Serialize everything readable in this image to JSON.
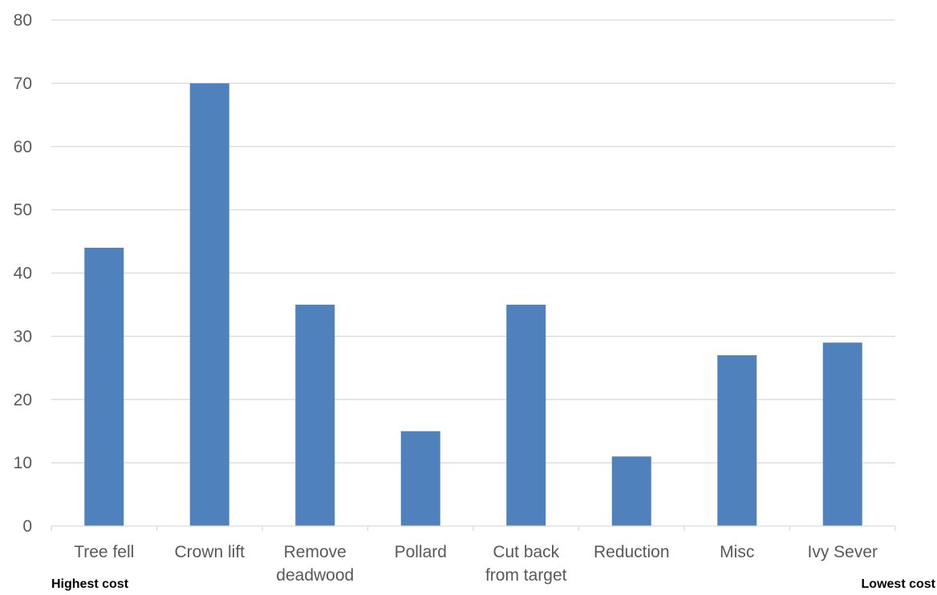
{
  "chart_data": {
    "type": "bar",
    "categories": [
      "Tree fell",
      "Crown lift",
      "Remove deadwood",
      "Pollard",
      "Cut back from target",
      "Reduction",
      "Misc",
      "Ivy Sever"
    ],
    "category_lines": [
      [
        "Tree fell"
      ],
      [
        "Crown lift"
      ],
      [
        "Remove",
        "deadwood"
      ],
      [
        "Pollard"
      ],
      [
        "Cut back",
        "from target"
      ],
      [
        "Reduction"
      ],
      [
        "Misc"
      ],
      [
        "Ivy Sever"
      ]
    ],
    "values": [
      44,
      70,
      35,
      15,
      35,
      11,
      27,
      29
    ],
    "title": "",
    "xlabel": "",
    "ylabel": "",
    "ylim": [
      0,
      80
    ],
    "yticks": [
      0,
      10,
      20,
      30,
      40,
      50,
      60,
      70,
      80
    ],
    "grid": true,
    "legend": "none",
    "bar_color": "#4f81bd",
    "grid_color": "#d9d9d9",
    "axis_color": "#d9d9d9"
  },
  "annotations": {
    "left": "Highest cost",
    "right": "Lowest cost"
  }
}
